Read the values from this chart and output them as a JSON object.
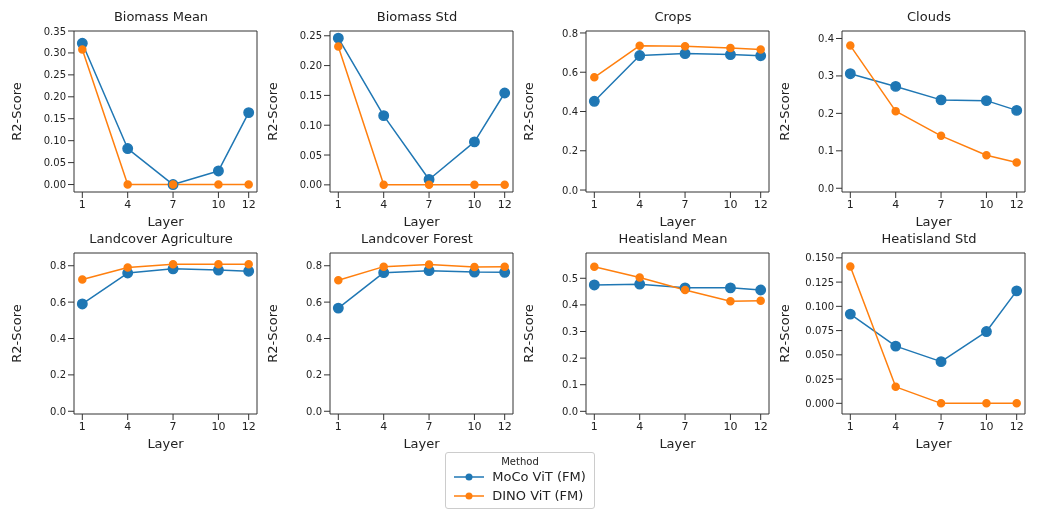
{
  "chart_data": [
    {
      "type": "line",
      "title": "Biomass Mean",
      "xlabel": "Layer",
      "ylabel": "R2-Score",
      "marker": "circle",
      "legend": "bottom",
      "legend_title": "Method",
      "x": [
        1,
        4,
        7,
        10,
        12
      ],
      "xlim": [
        0.45,
        12.55
      ],
      "xticks": [
        1,
        4,
        7,
        10,
        12
      ],
      "ylim": [
        -0.017,
        0.35
      ],
      "yticks": [
        {
          "value": 0,
          "label": "0.00"
        },
        0.05,
        {
          "value": 0.1,
          "label": "0.10"
        },
        0.15,
        {
          "value": 0.2,
          "label": "0.20"
        },
        0.25,
        {
          "value": 0.3,
          "label": "0.30"
        },
        0.35
      ],
      "series": [
        {
          "name": "MoCo ViT (FM)",
          "color": "#1f77b4",
          "values": [
            0.322,
            0.082,
            0.0,
            0.031,
            0.164
          ]
        },
        {
          "name": "DINO ViT (FM)",
          "color": "#ff7f0e",
          "values": [
            0.308,
            0,
            0,
            0,
            0
          ]
        }
      ]
    },
    {
      "type": "line",
      "title": "Biomass Std",
      "xlabel": "Layer",
      "ylabel": "R2-Score",
      "marker": "circle",
      "x": [
        1,
        4,
        7,
        10,
        12
      ],
      "xlim": [
        0.45,
        12.55
      ],
      "xticks": [
        1,
        4,
        7,
        10,
        12
      ],
      "ylim": [
        -0.012,
        0.258
      ],
      "yticks": [
        {
          "value": 0,
          "label": "0.00"
        },
        0.05,
        {
          "value": 0.1,
          "label": "0.10"
        },
        0.15,
        {
          "value": 0.2,
          "label": "0.20"
        },
        0.25
      ],
      "series": [
        {
          "name": "MoCo ViT (FM)",
          "color": "#1f77b4",
          "values": [
            0.246,
            0.116,
            0.009,
            0.072,
            0.154
          ]
        },
        {
          "name": "DINO ViT (FM)",
          "color": "#ff7f0e",
          "values": [
            0.232,
            0,
            0,
            0,
            0
          ]
        }
      ]
    },
    {
      "type": "line",
      "title": "Crops",
      "xlabel": "Layer",
      "ylabel": "R2-Score",
      "marker": "circle",
      "x": [
        1,
        4,
        7,
        10,
        12
      ],
      "xlim": [
        0.45,
        12.55
      ],
      "xticks": [
        1,
        4,
        7,
        10,
        12
      ],
      "ylim": [
        -0.01,
        0.81
      ],
      "yticks": [
        {
          "value": 0,
          "label": "0.0"
        },
        0.2,
        0.4,
        0.6,
        0.8
      ],
      "series": [
        {
          "name": "MoCo ViT (FM)",
          "color": "#1f77b4",
          "values": [
            0.452,
            0.685,
            0.695,
            0.69,
            0.684
          ]
        },
        {
          "name": "DINO ViT (FM)",
          "color": "#ff7f0e",
          "values": [
            0.574,
            0.735,
            0.732,
            0.724,
            0.716
          ]
        }
      ]
    },
    {
      "type": "line",
      "title": "Clouds",
      "xlabel": "Layer",
      "ylabel": "R2-Score",
      "marker": "circle",
      "x": [
        1,
        4,
        7,
        10,
        12
      ],
      "xlim": [
        0.45,
        12.55
      ],
      "xticks": [
        1,
        4,
        7,
        10,
        12
      ],
      "ylim": [
        -0.01,
        0.42
      ],
      "yticks": [
        {
          "value": 0,
          "label": "0.0"
        },
        0.1,
        0.2,
        0.3,
        0.4
      ],
      "series": [
        {
          "name": "MoCo ViT (FM)",
          "color": "#1f77b4",
          "values": [
            0.306,
            0.272,
            0.236,
            0.234,
            0.208
          ]
        },
        {
          "name": "DINO ViT (FM)",
          "color": "#ff7f0e",
          "values": [
            0.381,
            0.206,
            0.14,
            0.088,
            0.069
          ]
        }
      ]
    },
    {
      "type": "line",
      "title": "Landcover Agriculture",
      "xlabel": "Layer",
      "ylabel": "R2-Score",
      "marker": "circle",
      "x": [
        1,
        4,
        7,
        10,
        12
      ],
      "xlim": [
        0.45,
        12.55
      ],
      "xticks": [
        1,
        4,
        7,
        10,
        12
      ],
      "ylim": [
        -0.015,
        0.87
      ],
      "yticks": [
        {
          "value": 0,
          "label": "0.0"
        },
        0.2,
        0.4,
        0.6,
        0.8
      ],
      "series": [
        {
          "name": "MoCo ViT (FM)",
          "color": "#1f77b4",
          "values": [
            0.59,
            0.76,
            0.783,
            0.776,
            0.77
          ]
        },
        {
          "name": "DINO ViT (FM)",
          "color": "#ff7f0e",
          "values": [
            0.724,
            0.79,
            0.808,
            0.808,
            0.808
          ]
        }
      ]
    },
    {
      "type": "line",
      "title": "Landcover Forest",
      "xlabel": "Layer",
      "ylabel": "R2-Score",
      "marker": "circle",
      "x": [
        1,
        4,
        7,
        10,
        12
      ],
      "xlim": [
        0.45,
        12.55
      ],
      "xticks": [
        1,
        4,
        7,
        10,
        12
      ],
      "ylim": [
        -0.015,
        0.87
      ],
      "yticks": [
        {
          "value": 0,
          "label": "0.0"
        },
        0.2,
        0.4,
        0.6,
        0.8
      ],
      "series": [
        {
          "name": "MoCo ViT (FM)",
          "color": "#1f77b4",
          "values": [
            0.567,
            0.762,
            0.773,
            0.765,
            0.764
          ]
        },
        {
          "name": "DINO ViT (FM)",
          "color": "#ff7f0e",
          "values": [
            0.72,
            0.795,
            0.807,
            0.793,
            0.794
          ]
        }
      ]
    },
    {
      "type": "line",
      "title": "Heatisland Mean",
      "xlabel": "Layer",
      "ylabel": "R2-Score",
      "marker": "circle",
      "x": [
        1,
        4,
        7,
        10,
        12
      ],
      "xlim": [
        0.45,
        12.55
      ],
      "xticks": [
        1,
        4,
        7,
        10,
        12
      ],
      "ylim": [
        -0.01,
        0.595
      ],
      "yticks": [
        {
          "value": 0,
          "label": "0.0"
        },
        0.1,
        0.2,
        0.3,
        0.4,
        0.5
      ],
      "series": [
        {
          "name": "MoCo ViT (FM)",
          "color": "#1f77b4",
          "values": [
            0.475,
            0.478,
            0.464,
            0.464,
            0.456
          ]
        },
        {
          "name": "DINO ViT (FM)",
          "color": "#ff7f0e",
          "values": [
            0.543,
            0.503,
            0.456,
            0.414,
            0.416
          ]
        }
      ]
    },
    {
      "type": "line",
      "title": "Heatisland Std",
      "xlabel": "Layer",
      "ylabel": "R2-Score",
      "marker": "circle",
      "x": [
        1,
        4,
        7,
        10,
        12
      ],
      "xlim": [
        0.45,
        12.55
      ],
      "xticks": [
        1,
        4,
        7,
        10,
        12
      ],
      "ylim": [
        -0.011,
        0.155
      ],
      "yticks": [
        {
          "value": 0,
          "label": "0.000"
        },
        {
          "value": 0.025,
          "label": "0.025"
        },
        {
          "value": 0.05,
          "label": "0.050"
        },
        {
          "value": 0.075,
          "label": "0.075"
        },
        {
          "value": 0.1,
          "label": "0.100"
        },
        {
          "value": 0.125,
          "label": "0.125"
        },
        {
          "value": 0.15,
          "label": "0.150"
        }
      ],
      "series": [
        {
          "name": "MoCo ViT (FM)",
          "color": "#1f77b4",
          "values": [
            0.092,
            0.059,
            0.043,
            0.074,
            0.116
          ]
        },
        {
          "name": "DINO ViT (FM)",
          "color": "#ff7f0e",
          "values": [
            0.141,
            0.017,
            0,
            0,
            0
          ]
        }
      ]
    }
  ]
}
